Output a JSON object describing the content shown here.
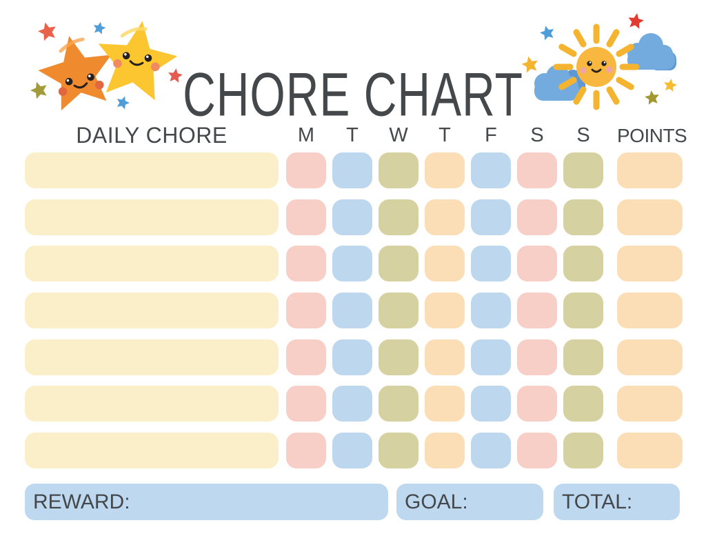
{
  "page": {
    "title": "CHORE CHART",
    "background": "#ffffff",
    "text_color": "#45484b"
  },
  "palette": {
    "cream": "#fbefc9",
    "pink": "#f8cfc6",
    "blue": "#bcd7ee",
    "olive": "#d5d1a1",
    "peach": "#fbddb6",
    "boxblue": "#bdd8ef",
    "ink": "#45484b"
  },
  "decorations": {
    "left": {
      "name": "two-smiling-stars",
      "big_star_colors": [
        "#ef8a2e",
        "#fbc62f"
      ],
      "small_star_colors": [
        "#e9624c",
        "#4f9edb",
        "#a39a3b",
        "#e35a50",
        "#4e9cd9"
      ]
    },
    "right": {
      "name": "smiling-sun-with-clouds",
      "sun_color": "#f8b840",
      "ray_color": "#f5b42f",
      "cloud_color": "#74abde",
      "cloud_shadow_color": "#5e98d2",
      "small_star_colors": [
        "#4f9edb",
        "#e23b31",
        "#f4b42f",
        "#f6bd33",
        "#a3982f"
      ]
    }
  },
  "table": {
    "chore_header": "DAILY CHORE",
    "day_headers": [
      "M",
      "T",
      "W",
      "T",
      "F",
      "S",
      "S"
    ],
    "points_header": "POINTS",
    "rows": 7,
    "chore_cell_color": "cream",
    "day_cell_colors": [
      "pink",
      "blue",
      "olive",
      "peach",
      "blue",
      "pink",
      "olive"
    ],
    "points_cell_color": "peach"
  },
  "footer": {
    "reward_label": "REWARD:",
    "goal_label": "GOAL:",
    "total_label": "TOTAL:"
  }
}
